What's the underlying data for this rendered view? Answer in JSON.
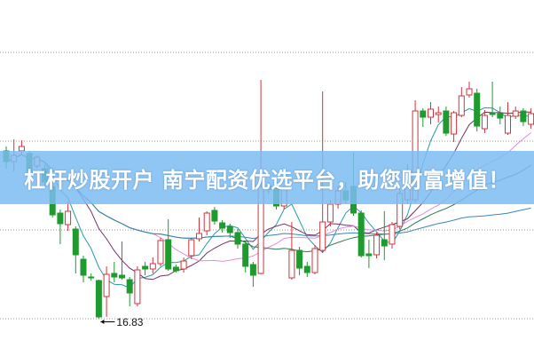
{
  "chart_data": {
    "type": "candlestick",
    "title": "",
    "xlabel": "",
    "ylabel": "",
    "ylim": [
      15.98,
      24.0
    ],
    "grid": true,
    "gridlines": [
      22.82,
      20.82,
      18.82,
      16.82
    ],
    "columns": [
      "open",
      "high",
      "low",
      "close"
    ],
    "candles": [
      [
        20.6,
        20.7,
        20.2,
        20.36
      ],
      [
        20.36,
        20.86,
        20.14,
        20.5
      ],
      [
        20.6,
        20.84,
        20.5,
        20.7
      ],
      [
        20.54,
        20.6,
        20.04,
        20.14
      ],
      [
        20.26,
        20.5,
        20.2,
        20.46
      ],
      [
        20.2,
        20.3,
        19.8,
        19.9
      ],
      [
        19.8,
        19.9,
        19.1,
        19.16
      ],
      [
        19.2,
        19.28,
        18.5,
        18.96
      ],
      [
        18.94,
        19.46,
        18.8,
        19.24
      ],
      [
        18.84,
        18.9,
        17.84,
        18.26
      ],
      [
        18.16,
        18.24,
        17.64,
        17.8
      ],
      [
        17.76,
        17.84,
        17.68,
        17.74
      ],
      [
        17.68,
        17.7,
        16.83,
        16.86
      ],
      [
        17.32,
        18.0,
        16.86,
        17.82
      ],
      [
        17.84,
        18.1,
        17.64,
        17.76
      ],
      [
        17.8,
        18.56,
        17.7,
        17.74
      ],
      [
        17.7,
        17.76,
        17.1,
        17.4
      ],
      [
        17.16,
        18.0,
        17.1,
        17.92
      ],
      [
        18.0,
        18.1,
        17.8,
        17.94
      ],
      [
        17.94,
        18.2,
        17.84,
        18.06
      ],
      [
        18.06,
        18.64,
        18.0,
        18.58
      ],
      [
        18.6,
        19.06,
        17.9,
        17.94
      ],
      [
        17.98,
        18.04,
        17.86,
        17.9
      ],
      [
        17.94,
        18.2,
        17.86,
        18.12
      ],
      [
        18.24,
        18.64,
        18.16,
        18.6
      ],
      [
        18.62,
        19.1,
        18.56,
        18.74
      ],
      [
        18.8,
        19.24,
        18.7,
        19.2
      ],
      [
        19.26,
        19.34,
        18.94,
        19.02
      ],
      [
        18.98,
        19.04,
        18.76,
        18.86
      ],
      [
        18.9,
        18.96,
        18.64,
        18.76
      ],
      [
        18.76,
        18.84,
        18.4,
        18.5
      ],
      [
        18.5,
        18.56,
        17.86,
        18.0
      ],
      [
        18.04,
        18.1,
        17.54,
        17.8
      ],
      [
        17.84,
        22.2,
        17.82,
        19.8
      ],
      [
        19.8,
        19.9,
        19.64,
        19.74
      ],
      [
        19.76,
        19.84,
        19.28,
        19.36
      ],
      [
        19.36,
        19.8,
        19.28,
        19.74
      ],
      [
        17.74,
        19.0,
        17.7,
        18.36
      ],
      [
        18.36,
        18.44,
        17.8,
        17.96
      ],
      [
        18.0,
        18.1,
        17.76,
        17.86
      ],
      [
        17.86,
        18.48,
        17.82,
        18.4
      ],
      [
        18.36,
        21.94,
        18.3,
        19.0
      ],
      [
        19.0,
        19.5,
        18.9,
        19.4
      ],
      [
        19.4,
        19.8,
        19.3,
        19.7
      ],
      [
        19.7,
        19.9,
        19.4,
        19.5
      ],
      [
        19.8,
        20.56,
        19.14,
        19.2
      ],
      [
        19.2,
        19.26,
        18.2,
        18.24
      ],
      [
        18.28,
        18.6,
        17.96,
        18.24
      ],
      [
        18.26,
        18.76,
        18.18,
        18.7
      ],
      [
        18.6,
        19.24,
        18.14,
        18.46
      ],
      [
        18.5,
        19.0,
        18.4,
        18.94
      ],
      [
        18.9,
        19.76,
        18.84,
        19.64
      ],
      [
        19.5,
        20.3,
        19.4,
        20.1
      ],
      [
        19.5,
        21.74,
        19.44,
        21.5
      ],
      [
        21.5,
        21.56,
        21.14,
        21.36
      ],
      [
        21.36,
        21.7,
        21.2,
        21.54
      ],
      [
        21.42,
        21.6,
        21.24,
        21.46
      ],
      [
        21.5,
        21.6,
        20.94,
        21.0
      ],
      [
        20.98,
        21.5,
        20.8,
        21.46
      ],
      [
        21.4,
        22.04,
        21.36,
        21.84
      ],
      [
        21.86,
        22.16,
        21.8,
        22.0
      ],
      [
        21.9,
        22.0,
        21.04,
        21.16
      ],
      [
        21.1,
        21.52,
        21.0,
        21.4
      ],
      [
        21.46,
        22.16,
        21.36,
        21.42
      ],
      [
        21.44,
        21.6,
        21.2,
        21.34
      ],
      [
        21.0,
        21.7,
        20.96,
        21.4
      ],
      [
        21.38,
        21.6,
        21.32,
        21.5
      ],
      [
        21.5,
        21.56,
        21.16,
        21.26
      ],
      [
        21.2,
        21.56,
        21.1,
        21.44
      ]
    ],
    "annotations": [
      {
        "text": "16.83",
        "candle_index": 12,
        "value": 16.83
      }
    ],
    "moving_averages": [
      {
        "period": 5,
        "color": "#2a9aa8"
      },
      {
        "period": 10,
        "color": "#7b2f63"
      },
      {
        "period": 20,
        "color": "#e28be0"
      },
      {
        "period": 30,
        "color": "#2f7a4e"
      },
      {
        "period": 60,
        "color": "#3a86b8"
      }
    ],
    "colors": {
      "up": "#d0343c",
      "down": "#1e9a2e",
      "grid": "#9a9a9a"
    }
  },
  "banner": {
    "text": "杠杆炒股开户 南宁配资优选平台，助您财富增值！"
  }
}
